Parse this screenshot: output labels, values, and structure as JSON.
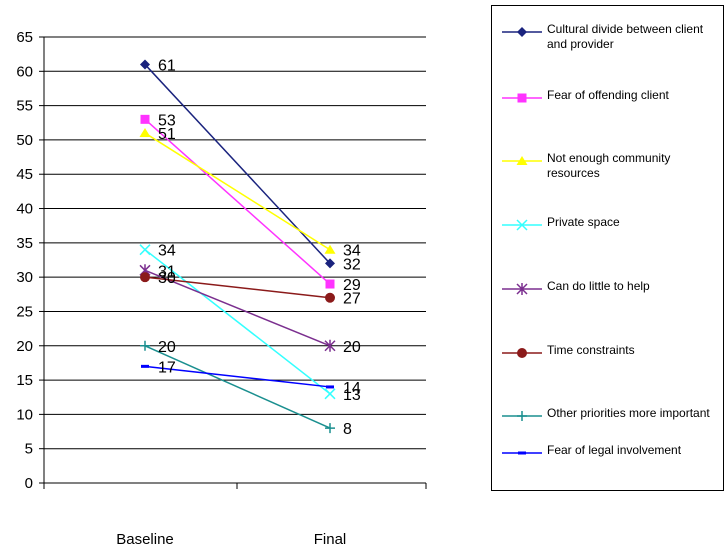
{
  "chart_data": {
    "type": "line",
    "categories": [
      "Baseline",
      "Final"
    ],
    "ylim": [
      0,
      65
    ],
    "yticks": [
      0,
      5,
      10,
      15,
      20,
      25,
      30,
      35,
      40,
      45,
      50,
      55,
      60,
      65
    ],
    "grid": true,
    "legend_position": "right",
    "series": [
      {
        "name": "Cultural divide between client and provider",
        "values": [
          61,
          32
        ],
        "color": "#1a237e",
        "marker": "diamond"
      },
      {
        "name": "Fear of offending client",
        "values": [
          53,
          29
        ],
        "color": "#ff33ff",
        "marker": "square"
      },
      {
        "name": "Not enough community resources",
        "values": [
          51,
          34
        ],
        "color": "#ffff00",
        "marker": "triangle"
      },
      {
        "name": "Private space",
        "values": [
          34,
          13
        ],
        "color": "#33ffff",
        "marker": "x"
      },
      {
        "name": "Can do little to help",
        "values": [
          31,
          20
        ],
        "color": "#7b2f8f",
        "marker": "star"
      },
      {
        "name": "Time constraints",
        "values": [
          30,
          27
        ],
        "color": "#8b1a1a",
        "marker": "circle"
      },
      {
        "name": "Other priorities more important",
        "values": [
          20,
          8
        ],
        "color": "#1a8f8f",
        "marker": "plus"
      },
      {
        "name": "Fear of legal involvement",
        "values": [
          17,
          14
        ],
        "color": "#0000ff",
        "marker": "dash"
      }
    ]
  }
}
